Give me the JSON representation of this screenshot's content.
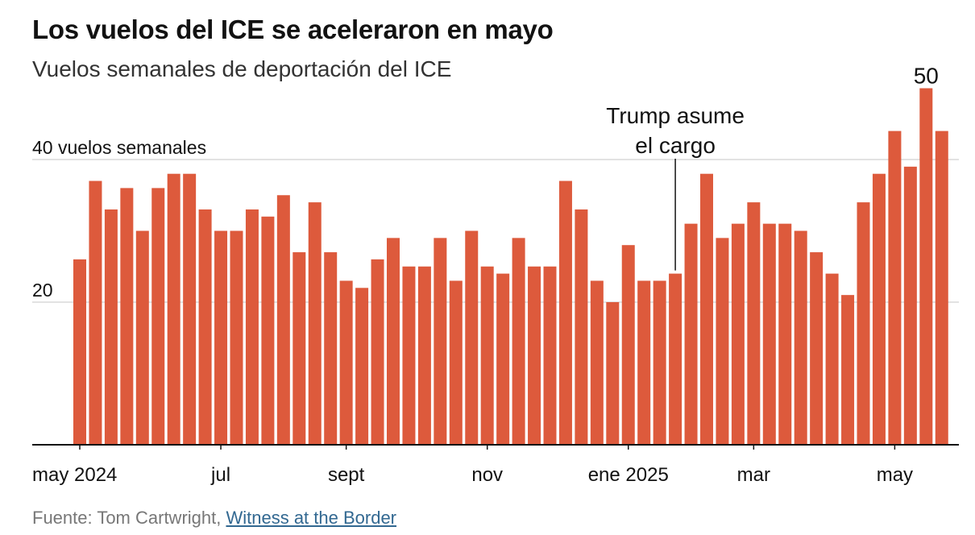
{
  "header": {
    "title": "Los vuelos del ICE se aceleraron en mayo",
    "subtitle": "Vuelos semanales de deportación del ICE"
  },
  "footer": {
    "source_prefix": "Fuente: Tom Cartwright, ",
    "source_link": "Witness at the Border"
  },
  "chart_data": {
    "type": "bar",
    "title": "Los vuelos del ICE se aceleraron en mayo",
    "subtitle": "Vuelos semanales de deportación del ICE",
    "bar_color": "#dd5a3c",
    "grid": true,
    "ylim": [
      0,
      50
    ],
    "y_ticks": [
      {
        "value": 20,
        "label": "20"
      },
      {
        "value": 40,
        "label": "40 vuelos semanales"
      }
    ],
    "x_ticks": [
      {
        "index": 0,
        "label": "may 2024"
      },
      {
        "index": 9,
        "label": "jul"
      },
      {
        "index": 17,
        "label": "sept"
      },
      {
        "index": 26,
        "label": "nov"
      },
      {
        "index": 35,
        "label": "ene 2025"
      },
      {
        "index": 43,
        "label": "mar"
      },
      {
        "index": 52,
        "label": "may"
      }
    ],
    "values": [
      26,
      37,
      33,
      36,
      30,
      36,
      38,
      38,
      33,
      30,
      30,
      33,
      32,
      35,
      27,
      34,
      27,
      23,
      22,
      26,
      29,
      25,
      25,
      29,
      23,
      30,
      25,
      24,
      29,
      25,
      25,
      37,
      33,
      23,
      20,
      28,
      23,
      23,
      24,
      31,
      38,
      29,
      31,
      34,
      31,
      31,
      30,
      27,
      24,
      21,
      34,
      38,
      44,
      39,
      50,
      44
    ],
    "annotations": [
      {
        "index": 38,
        "lines": [
          "Trump asume",
          "el cargo"
        ]
      },
      {
        "index": 54,
        "label": "50"
      }
    ]
  }
}
